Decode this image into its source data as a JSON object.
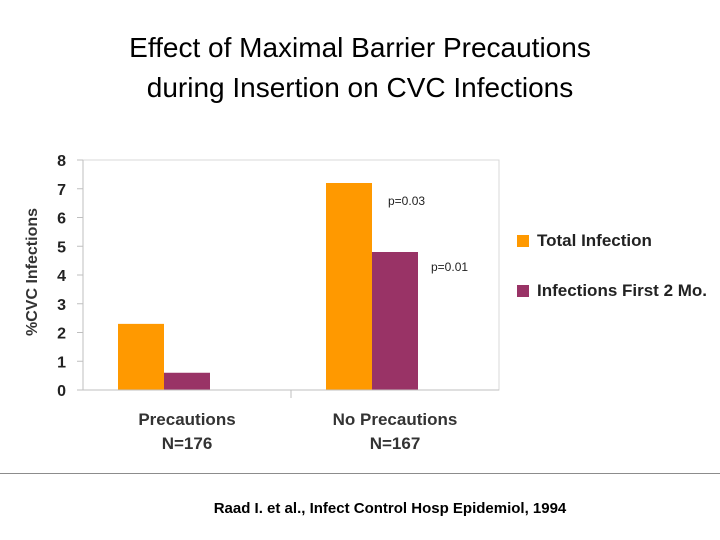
{
  "slide": {
    "title_line1": "Effect of Maximal Barrier Precautions",
    "title_line2": "during Insertion on CVC Infections",
    "citation": "Raad I. et al., Infect Control Hosp Epidemiol, 1994"
  },
  "chart_data": {
    "type": "bar",
    "title": "",
    "xlabel": "",
    "ylabel": "%CVC Infections",
    "ylim": [
      0,
      8
    ],
    "yticks": [
      "0",
      "1",
      "2",
      "3",
      "4",
      "5",
      "6",
      "7",
      "8"
    ],
    "categories": [
      {
        "line1": "Precautions",
        "line2": "N=176"
      },
      {
        "line1": "No Precautions",
        "line2": "N=167"
      }
    ],
    "series": [
      {
        "name": "Total Infection",
        "color": "#FF9900",
        "values": [
          2.3,
          7.2
        ]
      },
      {
        "name": "Infections First 2 Mo.",
        "color": "#993366",
        "values": [
          0.6,
          4.8
        ]
      }
    ],
    "annotations": [
      "p=0.03",
      "p=0.01"
    ],
    "legend_position": "right",
    "grid": false
  }
}
